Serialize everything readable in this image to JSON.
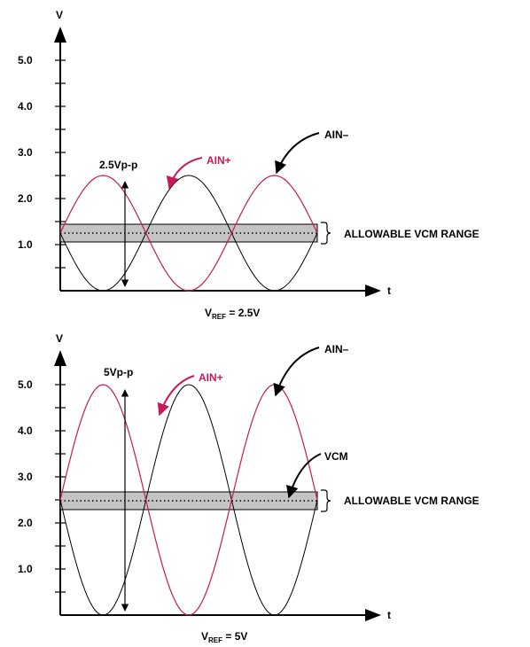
{
  "colors": {
    "ain_plus": "#c8195a",
    "ain_minus": "#000000",
    "band": "#c4c4c4"
  },
  "panels": [
    {
      "axis_v": "V",
      "axis_t": "t",
      "ticks": [
        "1.0",
        "2.0",
        "3.0",
        "4.0",
        "5.0"
      ],
      "pp_label": "2.5Vp-p",
      "ain_plus": "AIN+",
      "ain_minus": "AIN–",
      "range_label": "ALLOWABLE VCM RANGE",
      "vref_main": "V",
      "vref_sub": "REF",
      "vref_value": " = 2.5V",
      "vcm_low": 1.05,
      "vcm_high": 1.45,
      "vcm_mid": 1.25,
      "amplitude": 1.25
    },
    {
      "axis_v": "V",
      "axis_t": "t",
      "ticks": [
        "1.0",
        "2.0",
        "3.0",
        "4.0",
        "5.0"
      ],
      "pp_label": "5Vp-p",
      "ain_plus": "AIN+",
      "ain_minus": "AIN–",
      "vcm_label": "VCM",
      "range_label": "ALLOWABLE VCM RANGE",
      "vref_main": "V",
      "vref_sub": "REF",
      "vref_value": " = 5V",
      "vcm_low": 2.3,
      "vcm_high": 2.7,
      "vcm_mid": 2.5,
      "amplitude": 2.5
    }
  ]
}
